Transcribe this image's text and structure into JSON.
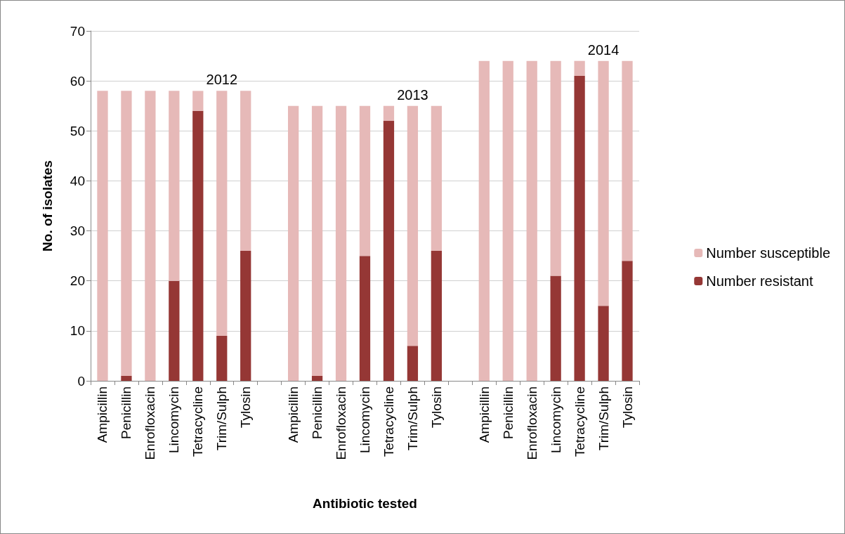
{
  "chart_data": {
    "type": "bar",
    "stacked": true,
    "xlabel": "Antibiotic tested",
    "ylabel": "No. of isolates",
    "categories": [
      "Ampicillin",
      "Penicillin",
      "Enrofloxacin",
      "Lincomycin",
      "Tetracycline",
      "Trim/Sulph",
      "Tylosin",
      null,
      "Ampicillin",
      "Penicillin",
      "Enrofloxacin",
      "Lincomycin",
      "Tetracycline",
      "Trim/Sulph",
      "Tylosin",
      null,
      "Ampicillin",
      "Penicillin",
      "Enrofloxacin",
      "Lincomycin",
      "Tetracycline",
      "Trim/Sulph",
      "Tylosin"
    ],
    "series": [
      {
        "name": "Number resistant",
        "color": "#953735",
        "values": [
          0,
          1,
          0,
          20,
          54,
          9,
          26,
          null,
          0,
          1,
          0,
          25,
          52,
          7,
          26,
          null,
          0,
          0,
          0,
          21,
          61,
          15,
          24
        ]
      },
      {
        "name": "Number susceptible",
        "color": "#e6b9b8",
        "values": [
          58,
          57,
          58,
          38,
          4,
          49,
          32,
          null,
          55,
          54,
          55,
          30,
          3,
          48,
          29,
          null,
          64,
          64,
          64,
          43,
          3,
          49,
          40
        ]
      }
    ],
    "ylim": [
      0,
      70
    ],
    "yticks": [
      0,
      10,
      20,
      30,
      40,
      50,
      60,
      70
    ],
    "grid": "y",
    "legend": "right",
    "annotations": [
      "2012",
      "2013",
      "2014"
    ]
  }
}
